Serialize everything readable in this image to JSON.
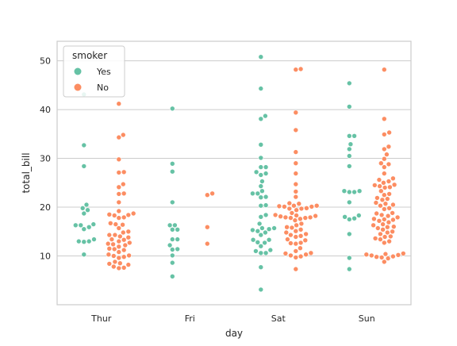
{
  "chart_data": {
    "type": "scatter",
    "subtype": "swarm",
    "title": "",
    "xlabel": "day",
    "ylabel": "total_bill",
    "categories": [
      "Thur",
      "Fri",
      "Sat",
      "Sun"
    ],
    "ylim": [
      0,
      54
    ],
    "yticks": [
      10,
      20,
      30,
      40,
      50
    ],
    "grid": "horizontal",
    "legend": {
      "title": "smoker",
      "placement": "top-left",
      "entries": [
        "Yes",
        "No"
      ]
    },
    "colors": {
      "Yes": "#66c2a5",
      "No": "#fc8d62",
      "grid": "#cccccc",
      "axis_frame": "#cccccc"
    },
    "series": [
      {
        "name": "Yes",
        "points": {
          "Thur": [
            43.1,
            32.7,
            28.4,
            20.5,
            19.8,
            19.4,
            18.7,
            16.5,
            16.3,
            16.3,
            15.9,
            15.5,
            13.4,
            13.0,
            12.9,
            13.0,
            10.3
          ],
          "Fri": [
            40.2,
            28.9,
            27.3,
            21.0,
            16.3,
            16.3,
            15.4,
            15.4,
            13.4,
            13.4,
            12.2,
            11.4,
            11.3,
            10.1,
            8.6,
            5.8
          ],
          "Sat": [
            50.8,
            44.3,
            38.7,
            38.1,
            32.8,
            30.1,
            28.2,
            28.2,
            27.2,
            26.9,
            26.6,
            25.3,
            24.3,
            23.3,
            22.8,
            22.8,
            22.1,
            22.0,
            20.4,
            20.3,
            18.4,
            18.0,
            16.6,
            15.7,
            15.7,
            15.5,
            15.3,
            15.1,
            14.8,
            14.3,
            13.3,
            13.3,
            12.8,
            12.7,
            12.0,
            11.2,
            11.0,
            10.6,
            10.6,
            7.7,
            3.1
          ],
          "Sun": [
            45.4,
            40.6,
            34.6,
            34.6,
            32.9,
            31.9,
            30.5,
            28.4,
            23.3,
            23.3,
            23.1,
            23.1,
            21.0,
            18.3,
            18.0,
            17.7,
            17.5,
            14.5,
            9.6,
            7.3
          ]
        }
      },
      {
        "name": "No",
        "points": {
          "Thur": [
            41.2,
            34.8,
            34.3,
            29.8,
            27.2,
            27.1,
            24.7,
            24.1,
            22.8,
            22.7,
            21.0,
            19.2,
            18.7,
            18.5,
            18.4,
            18.3,
            17.9,
            17.8,
            16.7,
            16.5,
            16.4,
            15.7,
            15.0,
            14.8,
            14.3,
            14.3,
            14.0,
            13.8,
            13.4,
            13.3,
            13.0,
            12.7,
            12.5,
            12.4,
            12.2,
            11.9,
            11.5,
            11.4,
            11.2,
            10.8,
            10.3,
            10.1,
            10.0,
            9.8,
            9.6,
            8.8,
            8.5,
            8.4,
            8.2,
            7.8,
            7.6,
            7.5
          ],
          "Fri": [
            22.8,
            22.5,
            15.9,
            12.5
          ],
          "Sat": [
            48.3,
            48.2,
            39.4,
            35.8,
            31.3,
            29.0,
            26.9,
            24.7,
            23.2,
            22.1,
            20.8,
            20.7,
            20.3,
            20.3,
            20.2,
            20.1,
            20.1,
            19.8,
            19.7,
            19.7,
            19.4,
            18.8,
            18.4,
            18.3,
            18.2,
            18.1,
            17.9,
            17.9,
            17.8,
            17.8,
            17.6,
            17.3,
            16.6,
            16.3,
            15.9,
            15.8,
            15.4,
            15.1,
            14.8,
            14.5,
            14.3,
            14.1,
            13.9,
            13.4,
            13.2,
            12.7,
            12.6,
            12.5,
            11.6,
            11.0,
            10.6,
            10.5,
            10.3,
            10.1,
            9.9,
            9.7,
            7.3
          ],
          "Sun": [
            48.2,
            38.1,
            35.3,
            34.9,
            32.4,
            31.9,
            30.8,
            29.9,
            29.0,
            28.8,
            28.2,
            26.9,
            25.9,
            25.6,
            25.3,
            25.0,
            24.6,
            24.5,
            24.3,
            24.1,
            24.0,
            23.3,
            22.7,
            22.5,
            21.9,
            21.7,
            21.5,
            20.9,
            20.7,
            20.5,
            20.3,
            19.8,
            19.6,
            18.8,
            18.7,
            18.4,
            18.2,
            17.9,
            17.6,
            17.5,
            17.4,
            17.2,
            16.9,
            16.5,
            16.3,
            16.0,
            15.9,
            15.7,
            15.4,
            15.0,
            14.8,
            14.5,
            14.0,
            13.9,
            13.6,
            13.4,
            13.0,
            12.7,
            10.5,
            10.4,
            10.3,
            10.2,
            10.1,
            9.9,
            9.8,
            9.7,
            9.5,
            8.8
          ]
        }
      }
    ]
  }
}
